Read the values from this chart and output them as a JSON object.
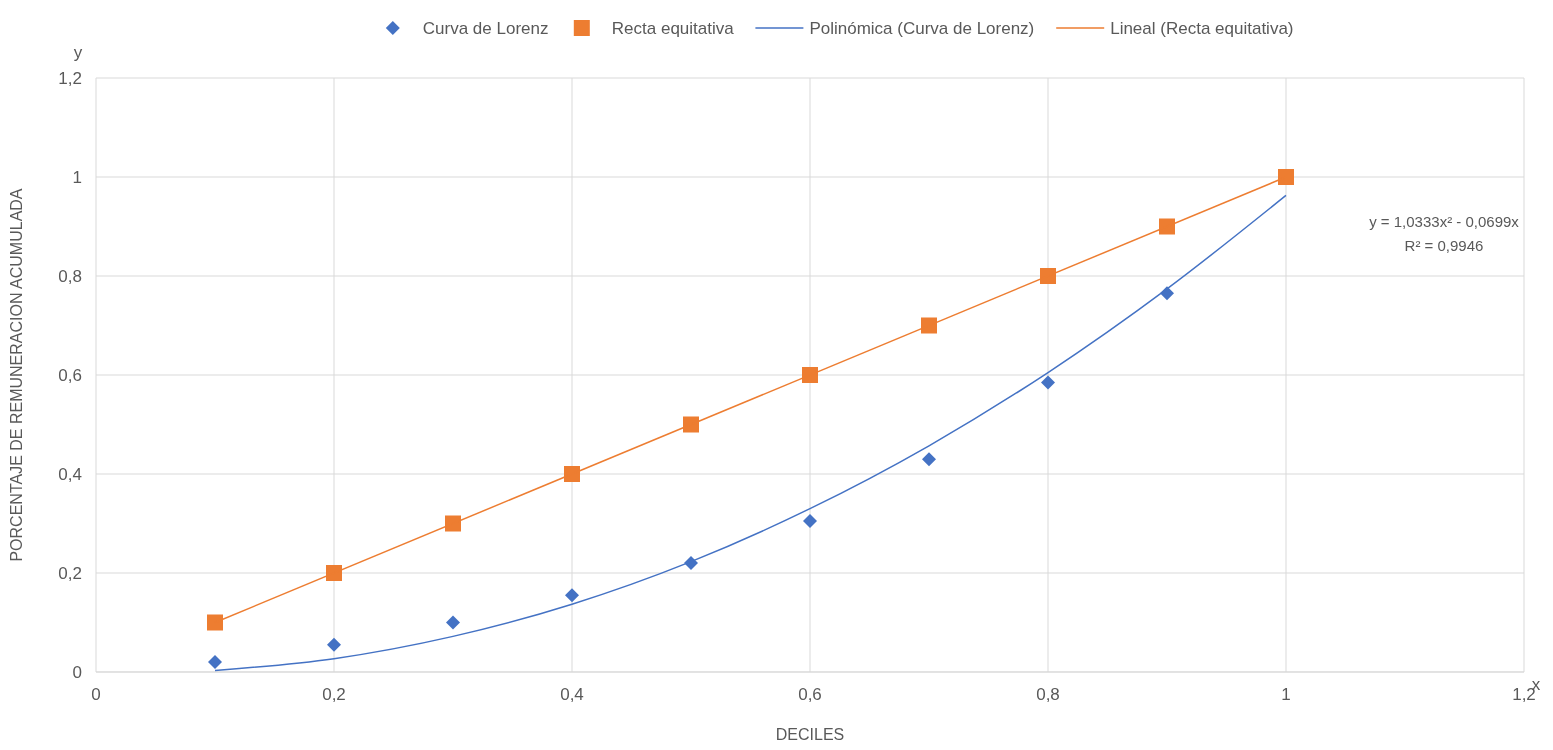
{
  "chart_data": {
    "type": "scatter",
    "xlabel": "DECILES",
    "ylabel": "PORCENTAJE DE REMUNERACION ACUMULADA",
    "xlim": [
      0,
      1.2
    ],
    "ylim": [
      0,
      1.2
    ],
    "xticks": [
      0,
      {
        "value": 0.2,
        "label": "0,2"
      },
      {
        "value": 0.4,
        "label": "0,4"
      },
      {
        "value": 0.6,
        "label": "0,6"
      },
      {
        "value": 0.8,
        "label": "0,8"
      },
      1,
      {
        "value": 1.2,
        "label": "1,2"
      }
    ],
    "yticks": [
      0,
      {
        "value": 0.2,
        "label": "0,2"
      },
      {
        "value": 0.4,
        "label": "0,4"
      },
      {
        "value": 0.6,
        "label": "0,6"
      },
      {
        "value": 0.8,
        "label": "0,8"
      },
      1,
      {
        "value": 1.2,
        "label": "1,2"
      }
    ],
    "grid": true,
    "legend": "top",
    "series": [
      {
        "name": "Curva de Lorenz",
        "marker": "diamond",
        "color": "#4472c4",
        "x": [
          0.1,
          0.2,
          0.3,
          0.4,
          0.5,
          0.6,
          0.7,
          0.8,
          0.9
        ],
        "values": [
          0.02,
          0.055,
          0.1,
          0.155,
          0.22,
          0.305,
          0.43,
          0.585,
          0.765
        ]
      },
      {
        "name": "Recta equitativa",
        "marker": "square",
        "color": "#ed7d31",
        "x": [
          0.1,
          0.2,
          0.3,
          0.4,
          0.5,
          0.6,
          0.7,
          0.8,
          0.9,
          1
        ],
        "values": [
          0.1,
          0.2,
          0.3,
          0.4,
          0.5,
          0.6,
          0.7,
          0.8,
          0.9,
          1
        ]
      },
      {
        "name": "Polinómica (Curva de Lorenz)",
        "type": "line",
        "color": "#4472c4",
        "x": [
          0.1,
          0.2,
          0.3,
          0.4,
          0.5,
          0.6,
          0.7,
          0.8,
          0.9,
          1
        ],
        "values": [
          0.003,
          0.027,
          0.072,
          0.137,
          0.223,
          0.33,
          0.457,
          0.605,
          0.774,
          0.963
        ]
      },
      {
        "name": "Lineal (Recta equitativa)",
        "type": "line",
        "color": "#ed7d31",
        "x": [
          0.1,
          1
        ],
        "values": [
          0.1,
          1
        ]
      }
    ],
    "annotations": [
      "y",
      "x",
      "y = 1,0333x² - 0,0699x\nR² = 0,9946"
    ]
  }
}
